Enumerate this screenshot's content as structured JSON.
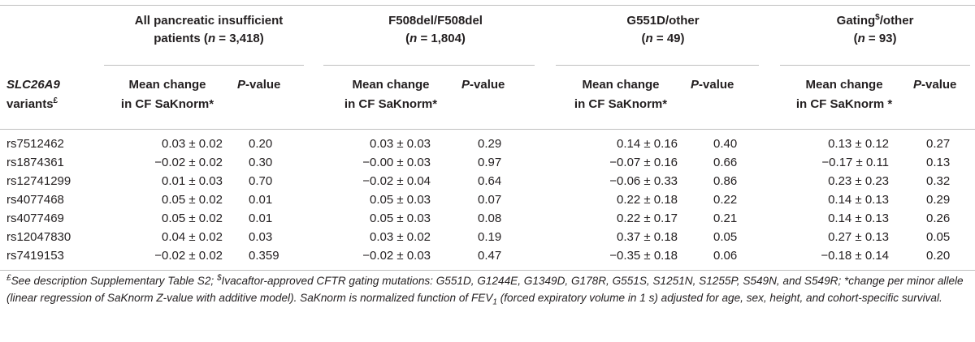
{
  "table": {
    "groups": [
      {
        "line1": "All pancreatic insufficient",
        "line2_pre": "patients (",
        "n_label": "n",
        "n_value": " = 3,418)"
      },
      {
        "line1": "F508del/F508del",
        "line2_pre": "(",
        "n_label": "n",
        "n_value": " = 1,804)"
      },
      {
        "line1": "G551D/other",
        "line2_pre": "(",
        "n_label": "n",
        "n_value": " = 49)"
      },
      {
        "line1_pre": "Gating",
        "line1_sup": "$",
        "line1_post": "/other",
        "line2_pre": "(",
        "n_label": "n",
        "n_value": " = 93)"
      }
    ],
    "first_header": {
      "gene": "SLC26A9",
      "line2": "variants",
      "sup": "£"
    },
    "mean_header_line1": "Mean change",
    "mean_header_line2": "in CF SaKnorm*",
    "mean_header_line2_alt": "in CF SaKnorm *",
    "pvalue_header_pre": "P",
    "pvalue_header_post": "-value",
    "rows": [
      {
        "snp": "rs7512462",
        "cells": [
          "0.03 ± 0.02",
          "0.20",
          "0.03 ± 0.03",
          "0.29",
          "0.14 ± 0.16",
          "0.40",
          "0.13 ± 0.12",
          "0.27"
        ]
      },
      {
        "snp": "rs1874361",
        "cells": [
          "−0.02 ± 0.02",
          "0.30",
          "−0.00 ± 0.03",
          "0.97",
          "−0.07 ± 0.16",
          "0.66",
          "−0.17 ± 0.11",
          "0.13"
        ]
      },
      {
        "snp": "rs12741299",
        "cells": [
          "0.01 ± 0.03",
          "0.70",
          "−0.02 ± 0.04",
          "0.64",
          "−0.06 ± 0.33",
          "0.86",
          "0.23 ± 0.23",
          "0.32"
        ]
      },
      {
        "snp": "rs4077468",
        "cells": [
          "0.05 ± 0.02",
          "0.01",
          "0.05 ± 0.03",
          "0.07",
          "0.22 ± 0.18",
          "0.22",
          "0.14 ± 0.13",
          "0.29"
        ]
      },
      {
        "snp": "rs4077469",
        "cells": [
          "0.05 ± 0.02",
          "0.01",
          "0.05 ± 0.03",
          "0.08",
          "0.22 ± 0.17",
          "0.21",
          "0.14 ± 0.13",
          "0.26"
        ]
      },
      {
        "snp": "rs12047830",
        "cells": [
          "0.04 ± 0.02",
          "0.03",
          "0.03 ± 0.02",
          "0.19",
          "0.37 ± 0.18",
          "0.05",
          "0.27 ± 0.13",
          "0.05"
        ]
      },
      {
        "snp": "rs7419153",
        "cells": [
          "−0.02 ± 0.02",
          "0.359",
          "−0.02 ± 0.03",
          "0.47",
          "−0.35 ± 0.18",
          "0.06",
          "−0.18 ± 0.14",
          "0.20"
        ]
      }
    ]
  },
  "footnote": {
    "sup1": "£",
    "part1": "See description Supplementary Table S2; ",
    "sup2": "$",
    "part2": "Ivacaftor-approved CFTR gating mutations: G551D, G1244E, G1349D, G178R, G551S, S1251N, S1255P, S549N, and S549R; *change per minor allele (linear regression of SaKnorm Z-value with additive model). SaKnorm is normalized function of FEV",
    "sub": "1",
    "part3": " (forced expiratory volume in 1 s) adjusted for age, sex, height, and cohort-specific survival."
  }
}
